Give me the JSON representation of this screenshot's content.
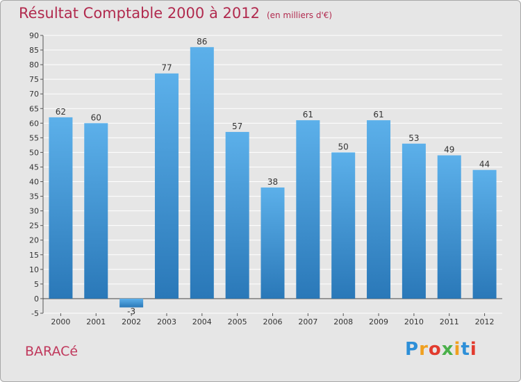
{
  "chart_data": {
    "type": "bar",
    "title": "Résultat Comptable 2000 à 2012",
    "subtitle": "(en milliers d'€)",
    "categories": [
      "2000",
      "2001",
      "2002",
      "2003",
      "2004",
      "2005",
      "2006",
      "2007",
      "2008",
      "2009",
      "2010",
      "2011",
      "2012"
    ],
    "values": [
      62,
      60,
      -3,
      77,
      86,
      57,
      38,
      61,
      50,
      61,
      53,
      49,
      44
    ],
    "data_labels": [
      "62",
      "60",
      "-3",
      "77",
      "86",
      "57",
      "38",
      "61",
      "50",
      "61",
      "53",
      "49",
      "44"
    ],
    "ylim": [
      -5,
      90
    ],
    "yticks": [
      -5,
      0,
      5,
      10,
      15,
      20,
      25,
      30,
      35,
      40,
      45,
      50,
      55,
      60,
      65,
      70,
      75,
      80,
      85,
      90
    ],
    "grid": true,
    "xlabel": "",
    "ylabel": ""
  },
  "commune": "BARACé",
  "logo": {
    "letters": [
      "P",
      "r",
      "o",
      "x",
      "i",
      "t",
      "i"
    ],
    "colors": [
      "#2d8fd8",
      "#f0a020",
      "#e23b2e",
      "#4ab04a",
      "#f0a020",
      "#2d8fd8",
      "#e23b2e"
    ]
  },
  "colors": {
    "bar_top": "#5cb0ea",
    "bar_bottom": "#2a78b8",
    "title": "#b12a4e",
    "grid": "#ffffff"
  }
}
